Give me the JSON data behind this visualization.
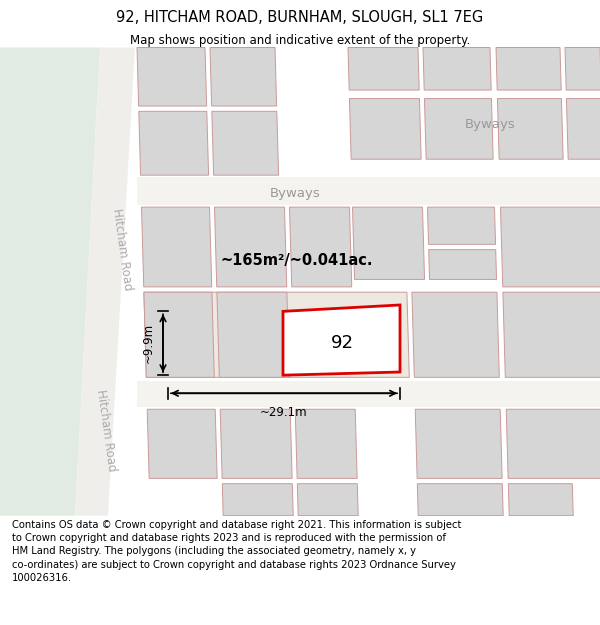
{
  "title": "92, HITCHAM ROAD, BURNHAM, SLOUGH, SL1 7EG",
  "subtitle": "Map shows position and indicative extent of the property.",
  "footer": "Contains OS data © Crown copyright and database right 2021. This information is subject\nto Crown copyright and database rights 2023 and is reproduced with the permission of\nHM Land Registry. The polygons (including the associated geometry, namely x, y\nco-ordinates) are subject to Crown copyright and database rights 2023 Ordnance Survey\n100026316.",
  "map_bg": "#f7f6f1",
  "green_bg": "#e2ebe2",
  "road_fill": "#f5f3ee",
  "building_fill": "#d6d6d6",
  "building_edge": "#cc9999",
  "prop_fill": "#ffffff",
  "prop_edge": "#dd0000",
  "title_fontsize": 10.5,
  "subtitle_fontsize": 8.5,
  "footer_fontsize": 7.2,
  "label_92": "92",
  "area_label": "~165m²/~0.041ac.",
  "width_label": "~29.1m",
  "height_label": "~9.9m",
  "road_label": "Hitcham Road",
  "byways_label1": "Byways",
  "byways_label2": "Byways"
}
